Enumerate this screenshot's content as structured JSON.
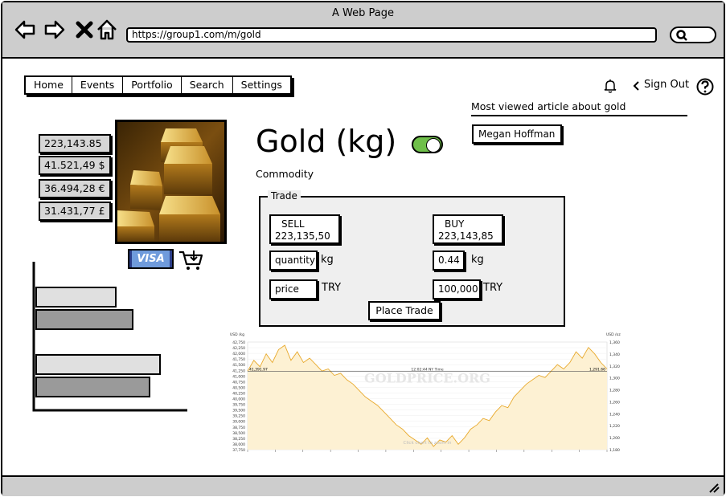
{
  "window": {
    "title": "A Web Page",
    "url": "https://group1.com/m/gold"
  },
  "menu": [
    {
      "label": "Home"
    },
    {
      "label": "Events"
    },
    {
      "label": "Portfolio"
    },
    {
      "label": "Search"
    },
    {
      "label": "Settings"
    }
  ],
  "header": {
    "sign_out": "Sign Out",
    "help_icon": "question-icon",
    "bell_icon": "bell-icon"
  },
  "prices": [
    "223,143.85 ₺",
    "41.521,49 $",
    "36.494,28 €",
    "31.431,77 £"
  ],
  "asset": {
    "title": "Gold (kg)",
    "subtitle": "Commodity",
    "toggle_on": true,
    "image": "gold-bars-image"
  },
  "payment": {
    "visa_label": "VISA",
    "cart_icon": "cart-download-icon"
  },
  "trade": {
    "legend": "Trade",
    "sell_label": "SELL",
    "sell_price": "223,135,50",
    "buy_label": "BUY",
    "buy_price": "223,143,85",
    "quantity_placeholder": "quantity",
    "quantity_value": "0.44",
    "quantity_unit": "kg",
    "price_placeholder": "price",
    "price_value": "100,000",
    "price_unit": "TRY",
    "place_trade": "Place Trade"
  },
  "article": {
    "heading": "Most viewed article about gold",
    "author": "Megan Hoffman"
  },
  "bar_chart": {
    "type": "bar",
    "orientation": "horizontal",
    "groups": [
      {
        "values": [
          0.62,
          0.75
        ],
        "colors": [
          "#e0e0e0",
          "#9a9a9a"
        ]
      },
      {
        "values": [
          0.96,
          0.88
        ],
        "colors": [
          "#e0e0e0",
          "#9a9a9a"
        ]
      }
    ]
  },
  "chart_data": {
    "type": "area",
    "watermark": "GOLDPRICE.ORG",
    "left_axis_label": "USD /kg",
    "right_axis_label": "USD /oz",
    "y_ticks_left": [
      "42,750",
      "42,250",
      "42,000",
      "41,750",
      "41,500",
      "41,250",
      "41,000",
      "40,750",
      "40,500",
      "40,250",
      "40,000",
      "39,750",
      "39,500",
      "39,250",
      "39,000",
      "38,750",
      "38,500",
      "38,250",
      "38,000",
      "37,750"
    ],
    "y_ticks_right": [
      "1,360",
      "1,340",
      "1,320",
      "1,300",
      "1,280",
      "1,260",
      "1,240",
      "1,220",
      "1,200",
      "1,180"
    ],
    "current_left": "41,391.97",
    "current_right": "1,291.66",
    "mid_label": "12:02:44 NY Time",
    "footer_hint": "Click chart to zoom in",
    "series": [
      {
        "values": [
          41400,
          41900,
          41600,
          42200,
          41800,
          42400,
          42600,
          41900,
          42300,
          41800,
          42000,
          41700,
          41400,
          41500,
          41200,
          41300,
          41000,
          40800,
          40500,
          40200,
          40000,
          39800,
          39500,
          39200,
          38900,
          38700,
          38400,
          38200,
          38000,
          38300,
          37900,
          38200,
          38100,
          38400,
          38000,
          38300,
          38700,
          38900,
          39200,
          39100,
          39500,
          39800,
          39700,
          40200,
          40500,
          40800,
          41000,
          41200,
          41100,
          41400,
          41700,
          41500,
          41800,
          42300,
          42000,
          42500,
          42200,
          41800,
          41500
        ]
      }
    ],
    "fill_color": "#fdf1d3",
    "line_color": "#e8a92c",
    "reference": 41392
  }
}
